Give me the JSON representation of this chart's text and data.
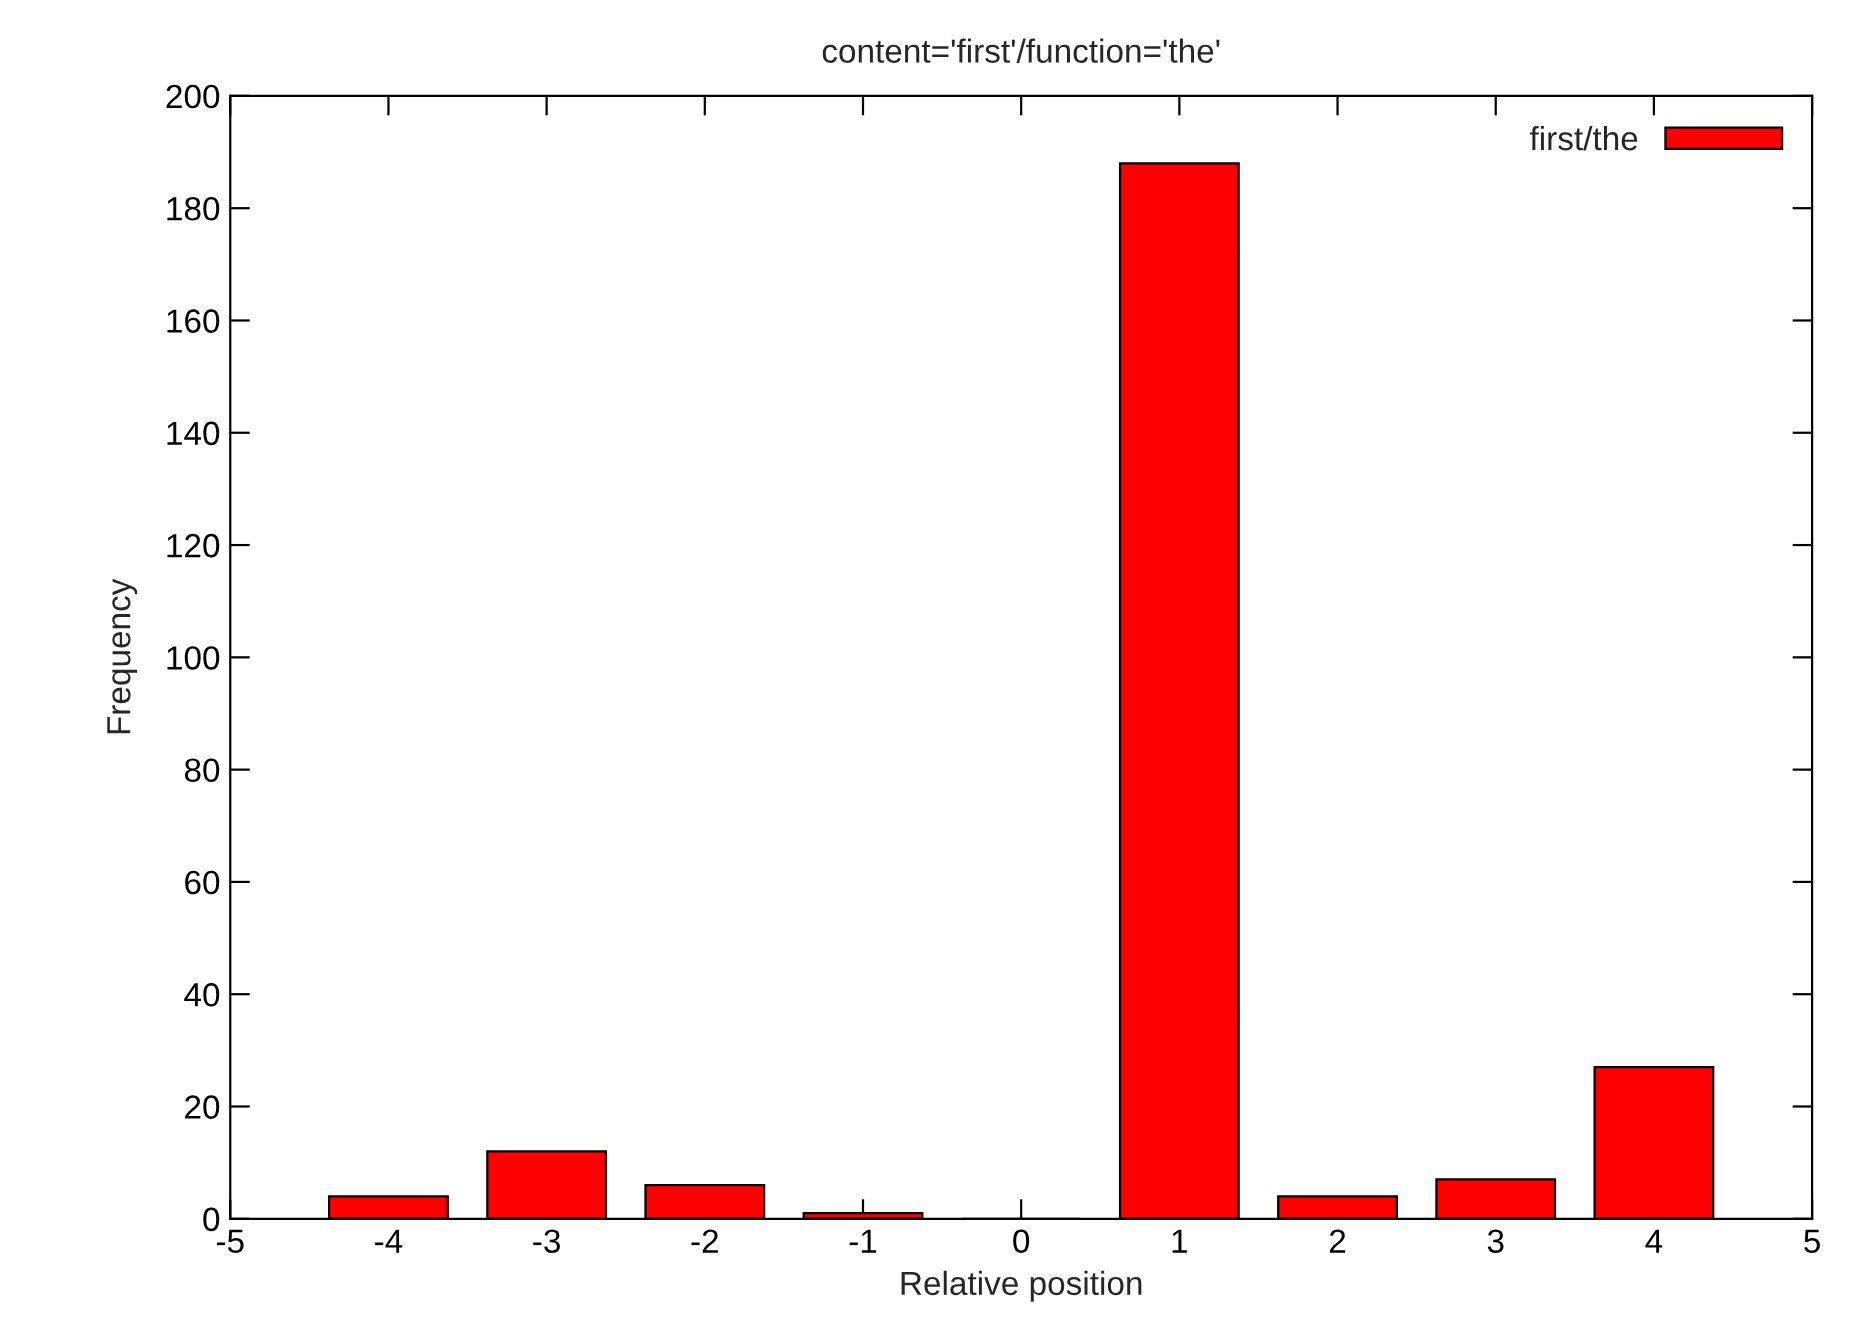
{
  "chart_data": {
    "type": "bar",
    "title": "content='first'/function='the'",
    "xlabel": "Relative position",
    "ylabel": "Frequency",
    "x": [
      -4,
      -3,
      -2,
      -1,
      0,
      1,
      2,
      3,
      4
    ],
    "series": [
      {
        "name": "first/the",
        "color": "#ff0000",
        "values": [
          4,
          12,
          6,
          1,
          0,
          188,
          4,
          7,
          27
        ]
      }
    ],
    "xlim": [
      -5,
      5
    ],
    "xticks": [
      -5,
      -4,
      -3,
      -2,
      -1,
      0,
      1,
      2,
      3,
      4,
      5
    ],
    "ylim": [
      0,
      200
    ],
    "yticks": [
      0,
      20,
      40,
      60,
      80,
      100,
      120,
      140,
      160,
      180,
      200
    ],
    "grid": false,
    "legend": "top right"
  }
}
